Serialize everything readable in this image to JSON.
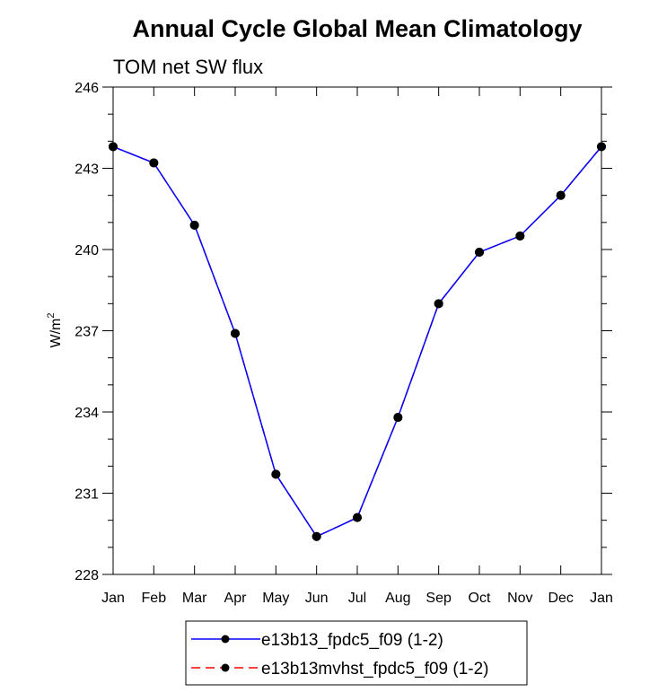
{
  "chart_data": {
    "type": "line",
    "title": "Annual Cycle Global Mean Climatology",
    "subtitle": "TOM net SW flux",
    "ylabel": "W/m",
    "ylabel_sup": "2",
    "xlabel": "",
    "categories": [
      "Jan",
      "Feb",
      "Mar",
      "Apr",
      "May",
      "Jun",
      "Jul",
      "Aug",
      "Sep",
      "Oct",
      "Nov",
      "Dec",
      "Jan"
    ],
    "ylim": [
      228,
      246
    ],
    "yticks": [
      "228",
      "231",
      "234",
      "237",
      "240",
      "243",
      "246"
    ],
    "series": [
      {
        "name": "e13b13_fpdc5_f09 (1-2)",
        "color": "#0000ff",
        "line_style": "solid",
        "values": [
          243.8,
          243.2,
          240.9,
          236.9,
          231.7,
          229.4,
          230.1,
          233.8,
          238.0,
          239.9,
          240.5,
          242.0,
          243.8
        ]
      },
      {
        "name": "e13b13mvhst_fpdc5_f09 (1-2)",
        "color": "#ff0000",
        "line_style": "dashed",
        "values": [
          243.8,
          243.2,
          240.9,
          236.9,
          231.7,
          229.4,
          230.1,
          233.8,
          238.0,
          239.9,
          240.5,
          242.0,
          243.8
        ]
      }
    ],
    "marker_color": "#000000",
    "legend_position": "bottom-center"
  }
}
